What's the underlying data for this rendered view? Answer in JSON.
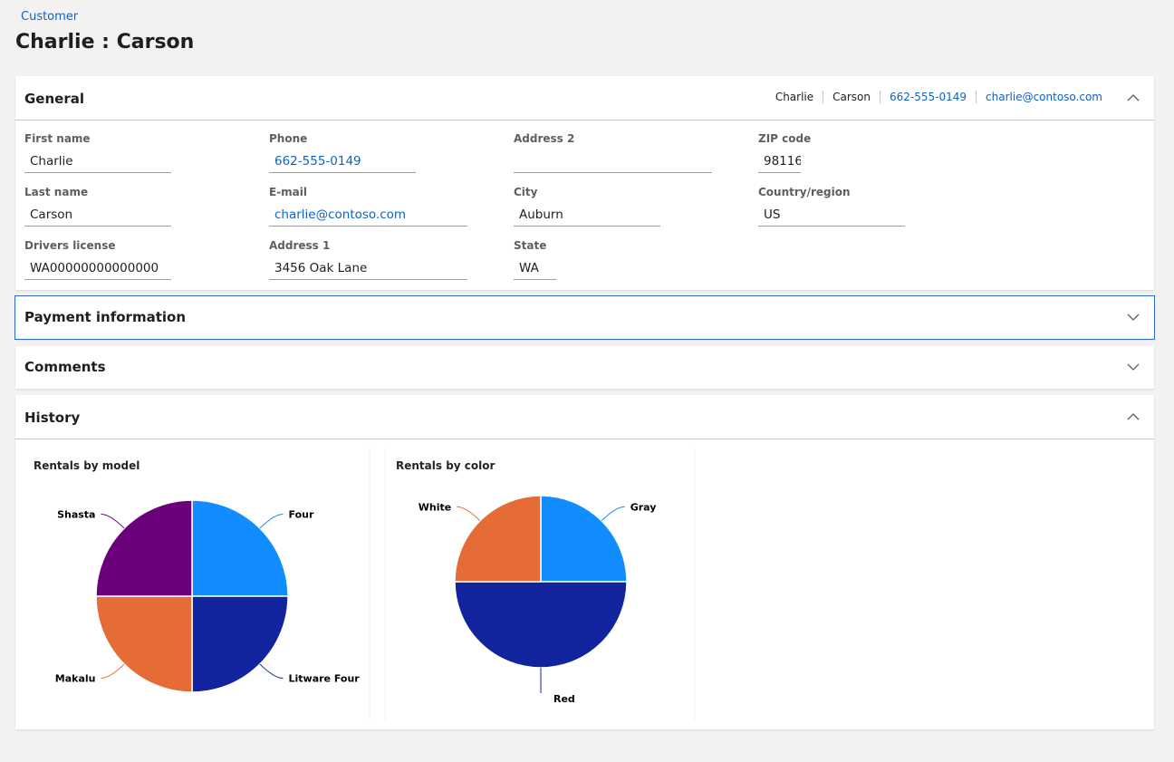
{
  "breadcrumb": "Customer",
  "title": "Charlie : Carson",
  "general": {
    "heading": "General",
    "summary": [
      "Charlie",
      "Carson",
      "662-555-0149",
      "charlie@contoso.com"
    ],
    "fields": [
      {
        "label": "First name",
        "value": "Charlie"
      },
      {
        "label": "Last name",
        "value": "Carson"
      },
      {
        "label": "Drivers license",
        "value": "WA00000000000000"
      },
      {
        "label": "Phone",
        "value": "662-555-0149"
      },
      {
        "label": "E-mail",
        "value": "charlie@contoso.com"
      },
      {
        "label": "Address 1",
        "value": "3456 Oak Lane"
      },
      {
        "label": "Address 2"
      },
      {
        "label": "City",
        "value": "Auburn"
      },
      {
        "label": "State",
        "value": "WA"
      },
      {
        "label": "ZIP code",
        "value": "98116"
      },
      {
        "label": "Country/region",
        "value": "US"
      }
    ]
  },
  "sections": [
    "Payment information",
    "Comments"
  ],
  "history": {
    "heading": "History"
  },
  "chart_data": [
    {
      "type": "pie",
      "title": "Rentals by model",
      "categories": [
        "Four",
        "Litware Four",
        "Makalu",
        "Shasta"
      ],
      "values": [
        1,
        1,
        1,
        1
      ],
      "colors": [
        "#118dff",
        "#12239e",
        "#e66c37",
        "#6b007b"
      ]
    },
    {
      "type": "pie",
      "title": "Rentals by color",
      "categories": [
        "Gray",
        "Red",
        "White"
      ],
      "values": [
        1,
        2,
        1
      ],
      "colors": [
        "#118dff",
        "#12239e",
        "#e66c37"
      ]
    }
  ]
}
